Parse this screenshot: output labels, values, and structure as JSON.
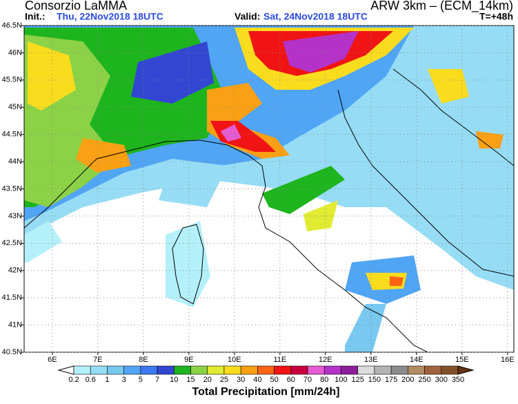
{
  "header": {
    "title": "Consorzio LaMMA",
    "model": "ARW 3km – (ECM_14km)",
    "init_label": "Init.:",
    "init": "Thu, 22Nov2018 18UTC",
    "valid_label": "Valid:",
    "valid": "Sat, 24Nov2018 18UTC",
    "lead": "T=+48h"
  },
  "map": {
    "xlim": [
      5.38,
      16.14
    ],
    "ylim": [
      40.5,
      46.5
    ],
    "xticks": [
      {
        "value": 6,
        "label": "6E"
      },
      {
        "value": 7,
        "label": "7E"
      },
      {
        "value": 8,
        "label": "8E"
      },
      {
        "value": 9,
        "label": "9E"
      },
      {
        "value": 10,
        "label": "10E"
      },
      {
        "value": 11,
        "label": "11E"
      },
      {
        "value": 12,
        "label": "12E"
      },
      {
        "value": 13,
        "label": "13E"
      },
      {
        "value": 14,
        "label": "14E"
      },
      {
        "value": 15,
        "label": "15E"
      },
      {
        "value": 16,
        "label": "16E"
      }
    ],
    "yticks": [
      {
        "value": 40.5,
        "label": "40.5N"
      },
      {
        "value": 41,
        "label": "41N"
      },
      {
        "value": 41.5,
        "label": "41.5N"
      },
      {
        "value": 42,
        "label": "42N"
      },
      {
        "value": 42.5,
        "label": "42.5N"
      },
      {
        "value": 43,
        "label": "43N"
      },
      {
        "value": 43.5,
        "label": "43.5N"
      },
      {
        "value": 44,
        "label": "44N"
      },
      {
        "value": 44.5,
        "label": "44.5N"
      },
      {
        "value": 45,
        "label": "45N"
      },
      {
        "value": 45.5,
        "label": "45.5N"
      },
      {
        "value": 46,
        "label": "46N"
      },
      {
        "value": 46.5,
        "label": "46.5N"
      }
    ],
    "grid": true
  },
  "colorbar": {
    "label": "Total Precipitation [mm/24h]",
    "levels": [
      0.2,
      0.6,
      1,
      3,
      5,
      7,
      10,
      15,
      20,
      25,
      30,
      40,
      50,
      60,
      70,
      80,
      100,
      125,
      150,
      175,
      200,
      250,
      300,
      350
    ],
    "colors": [
      "#ffffff",
      "#b4f0fa",
      "#96dcf5",
      "#78c8f0",
      "#50a5f5",
      "#3c78f0",
      "#3246d2",
      "#1eb41e",
      "#8cd246",
      "#e1eb32",
      "#fadc1e",
      "#faa014",
      "#fa6414",
      "#f01414",
      "#c8003c",
      "#e65ad2",
      "#b432c8",
      "#8c1e9b",
      "#dcdcdc",
      "#b4b4b4",
      "#8c8c8c",
      "#b48c64",
      "#a0643c",
      "#825028",
      "#643214"
    ]
  }
}
